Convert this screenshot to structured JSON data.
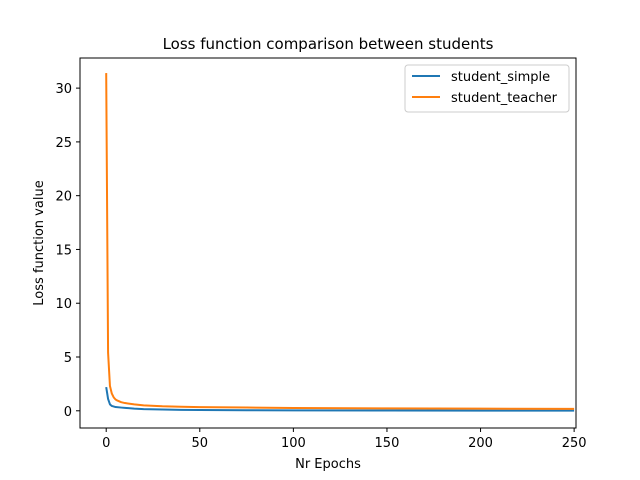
{
  "chart_data": {
    "type": "line",
    "title": "Loss function comparison between students",
    "xlabel": "Nr Epochs",
    "ylabel": "Loss function value",
    "xlim": [
      -14,
      251
    ],
    "ylim": [
      -1.6,
      32.8
    ],
    "xticks": [
      "0",
      "50",
      "100",
      "150",
      "200",
      "250"
    ],
    "yticks": [
      "0",
      "5",
      "10",
      "15",
      "20",
      "25",
      "30"
    ],
    "grid": false,
    "legend_position": "upper right",
    "series": [
      {
        "name": "student_simple",
        "color": "#1f77b4",
        "x": [
          0,
          1,
          2,
          3,
          5,
          8,
          10,
          15,
          20,
          30,
          40,
          50,
          75,
          100,
          150,
          200,
          250
        ],
        "y": [
          2.2,
          1.1,
          0.6,
          0.45,
          0.35,
          0.3,
          0.27,
          0.2,
          0.16,
          0.12,
          0.09,
          0.07,
          0.05,
          0.04,
          0.03,
          0.02,
          0.02
        ]
      },
      {
        "name": "student_teacher",
        "color": "#ff7f0e",
        "x": [
          0,
          1,
          2,
          3,
          4,
          5,
          6,
          8,
          10,
          15,
          20,
          30,
          40,
          50,
          75,
          100,
          150,
          200,
          250
        ],
        "y": [
          31.4,
          5.4,
          2.3,
          1.6,
          1.25,
          1.05,
          0.95,
          0.8,
          0.72,
          0.6,
          0.5,
          0.42,
          0.38,
          0.34,
          0.3,
          0.26,
          0.22,
          0.2,
          0.18
        ]
      }
    ]
  }
}
